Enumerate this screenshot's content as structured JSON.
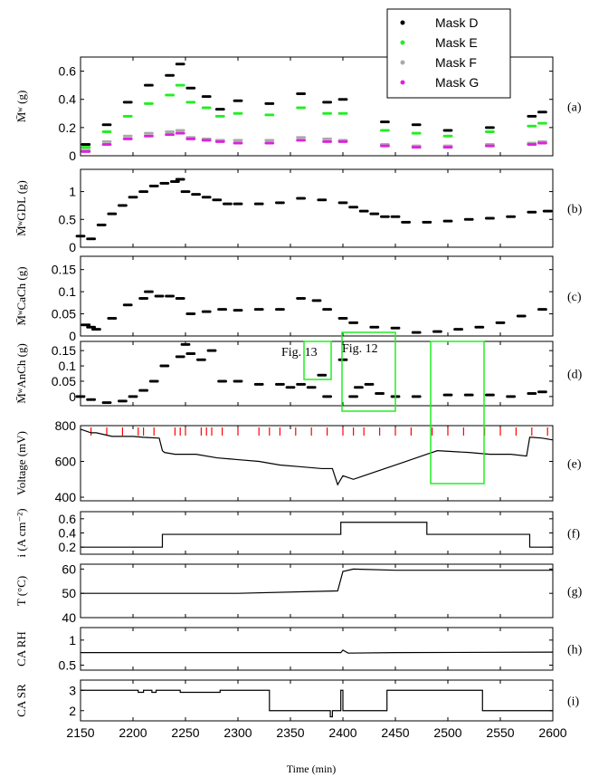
{
  "figure": {
    "xlabel": "Time (min)",
    "xticks": [
      "2150",
      "2200",
      "2250",
      "2300",
      "2350",
      "2400",
      "2450",
      "2500",
      "2550",
      "2600"
    ],
    "xlim": [
      2150,
      2600
    ]
  },
  "legend": {
    "placement": "top-right",
    "entries": [
      {
        "label": "Mask D",
        "color": "#000000"
      },
      {
        "label": "Mask E",
        "color": "#22ee22"
      },
      {
        "label": "Mask F",
        "color": "#aaaaaa"
      },
      {
        "label": "Mask G",
        "color": "#dd22dd"
      }
    ]
  },
  "annotations": {
    "fig13": "Fig. 13",
    "fig12": "Fig. 12",
    "box_color": "#22ee22",
    "marker_color": "#ff0000"
  },
  "chart_data": [
    {
      "id": "a",
      "type": "scatter",
      "panel_label": "(a)",
      "ylabel": "M̄ʷ (g)",
      "ylim": [
        0,
        0.7
      ],
      "yticks": [
        "0",
        "0.2",
        "0.4",
        "0.6"
      ],
      "series": [
        {
          "name": "Mask D",
          "color": "#000000",
          "x": [
            2155,
            2175,
            2195,
            2215,
            2235,
            2245,
            2255,
            2270,
            2283,
            2300,
            2330,
            2360,
            2385,
            2400,
            2440,
            2470,
            2500,
            2540,
            2580,
            2590
          ],
          "y": [
            0.08,
            0.22,
            0.38,
            0.5,
            0.57,
            0.65,
            0.48,
            0.42,
            0.33,
            0.39,
            0.37,
            0.44,
            0.38,
            0.4,
            0.24,
            0.22,
            0.18,
            0.2,
            0.28,
            0.31
          ]
        },
        {
          "name": "Mask E",
          "color": "#22ee22",
          "x": [
            2155,
            2175,
            2195,
            2215,
            2235,
            2245,
            2255,
            2270,
            2283,
            2300,
            2330,
            2360,
            2385,
            2400,
            2440,
            2470,
            2500,
            2540,
            2580,
            2590
          ],
          "y": [
            0.06,
            0.17,
            0.28,
            0.37,
            0.43,
            0.5,
            0.38,
            0.34,
            0.28,
            0.3,
            0.29,
            0.34,
            0.3,
            0.3,
            0.18,
            0.16,
            0.14,
            0.17,
            0.21,
            0.23
          ]
        },
        {
          "name": "Mask F",
          "color": "#aaaaaa",
          "x": [
            2155,
            2175,
            2195,
            2215,
            2235,
            2245,
            2255,
            2270,
            2283,
            2300,
            2330,
            2360,
            2385,
            2400,
            2440,
            2470,
            2500,
            2540,
            2580,
            2590
          ],
          "y": [
            0.04,
            0.1,
            0.14,
            0.16,
            0.17,
            0.18,
            0.13,
            0.12,
            0.11,
            0.11,
            0.11,
            0.13,
            0.12,
            0.11,
            0.08,
            0.07,
            0.07,
            0.08,
            0.09,
            0.1
          ]
        },
        {
          "name": "Mask G",
          "color": "#dd22dd",
          "x": [
            2155,
            2175,
            2195,
            2215,
            2235,
            2245,
            2255,
            2270,
            2283,
            2300,
            2330,
            2360,
            2385,
            2400,
            2440,
            2470,
            2500,
            2540,
            2580,
            2590
          ],
          "y": [
            0.03,
            0.08,
            0.12,
            0.14,
            0.15,
            0.16,
            0.12,
            0.11,
            0.1,
            0.09,
            0.09,
            0.11,
            0.1,
            0.1,
            0.07,
            0.06,
            0.06,
            0.07,
            0.08,
            0.09
          ]
        }
      ]
    },
    {
      "id": "b",
      "type": "scatter",
      "panel_label": "(b)",
      "ylabel": "M̄ʷGDL (g)",
      "ylim": [
        0,
        1.4
      ],
      "yticks": [
        "0",
        "0.5",
        "1"
      ],
      "series": [
        {
          "color": "#000000",
          "x": [
            2150,
            2160,
            2170,
            2180,
            2190,
            2200,
            2210,
            2220,
            2230,
            2240,
            2245,
            2250,
            2260,
            2270,
            2280,
            2290,
            2300,
            2320,
            2340,
            2360,
            2380,
            2400,
            2410,
            2420,
            2430,
            2440,
            2450,
            2460,
            2480,
            2500,
            2520,
            2540,
            2560,
            2580,
            2595
          ],
          "y": [
            0.2,
            0.15,
            0.4,
            0.6,
            0.75,
            0.9,
            1.0,
            1.1,
            1.15,
            1.18,
            1.22,
            1.0,
            0.95,
            0.9,
            0.85,
            0.78,
            0.78,
            0.78,
            0.8,
            0.88,
            0.85,
            0.8,
            0.72,
            0.65,
            0.6,
            0.55,
            0.55,
            0.45,
            0.45,
            0.47,
            0.5,
            0.52,
            0.55,
            0.63,
            0.65
          ]
        }
      ]
    },
    {
      "id": "c",
      "type": "scatter",
      "panel_label": "(c)",
      "ylabel": "M̄ʷCaCh (g)",
      "ylim": [
        0,
        0.18
      ],
      "yticks": [
        "0",
        "0.05",
        "0.1",
        "0.15"
      ],
      "series": [
        {
          "color": "#000000",
          "x": [
            2155,
            2160,
            2165,
            2180,
            2195,
            2210,
            2215,
            2225,
            2235,
            2245,
            2255,
            2270,
            2285,
            2300,
            2320,
            2340,
            2360,
            2375,
            2385,
            2400,
            2410,
            2430,
            2450,
            2470,
            2490,
            2510,
            2530,
            2550,
            2570,
            2590
          ],
          "y": [
            0.025,
            0.02,
            0.015,
            0.04,
            0.07,
            0.085,
            0.1,
            0.09,
            0.09,
            0.085,
            0.05,
            0.055,
            0.06,
            0.058,
            0.06,
            0.06,
            0.085,
            0.08,
            0.06,
            0.04,
            0.03,
            0.02,
            0.018,
            0.008,
            0.01,
            0.015,
            0.02,
            0.03,
            0.045,
            0.06
          ]
        }
      ]
    },
    {
      "id": "d",
      "type": "scatter",
      "panel_label": "(d)",
      "ylabel": "M̄ʷAnCh (g)",
      "ylim": [
        -0.03,
        0.18
      ],
      "yticks": [
        "0",
        "0.05",
        "0.1",
        "0.15"
      ],
      "series": [
        {
          "color": "#000000",
          "x": [
            2150,
            2160,
            2175,
            2190,
            2200,
            2210,
            2220,
            2230,
            2245,
            2250,
            2255,
            2265,
            2275,
            2285,
            2300,
            2320,
            2340,
            2350,
            2360,
            2370,
            2380,
            2385,
            2400,
            2410,
            2415,
            2425,
            2435,
            2450,
            2470,
            2500,
            2520,
            2540,
            2560,
            2580,
            2590
          ],
          "y": [
            0.0,
            -0.01,
            -0.02,
            -0.015,
            0.0,
            0.02,
            0.05,
            0.1,
            0.13,
            0.17,
            0.14,
            0.12,
            0.15,
            0.05,
            0.05,
            0.04,
            0.04,
            0.03,
            0.04,
            0.03,
            0.07,
            0.0,
            0.12,
            0.0,
            0.03,
            0.04,
            0.01,
            0.0,
            0.0,
            0.005,
            0.005,
            0.005,
            0.0,
            0.01,
            0.015
          ]
        }
      ]
    },
    {
      "id": "e",
      "type": "line",
      "panel_label": "(e)",
      "ylabel": "Voltage (mV)",
      "ylim": [
        380,
        800
      ],
      "yticks": [
        "400",
        "600",
        "800"
      ],
      "markers_x": [
        2160,
        2175,
        2190,
        2205,
        2210,
        2220,
        2240,
        2245,
        2250,
        2265,
        2270,
        2275,
        2285,
        2300,
        2320,
        2330,
        2340,
        2355,
        2370,
        2385,
        2400,
        2410,
        2420,
        2435,
        2450,
        2465,
        2485,
        2500,
        2515,
        2535,
        2550,
        2565,
        2580,
        2595
      ],
      "series": [
        {
          "color": "#000000",
          "x": [
            2150,
            2160,
            2165,
            2180,
            2200,
            2210,
            2225,
            2228,
            2230,
            2240,
            2260,
            2280,
            2300,
            2320,
            2340,
            2360,
            2380,
            2390,
            2395,
            2400,
            2410,
            2420,
            2440,
            2460,
            2480,
            2490,
            2520,
            2540,
            2560,
            2575,
            2578,
            2580,
            2590,
            2600
          ],
          "y": [
            780,
            760,
            760,
            740,
            740,
            735,
            730,
            660,
            650,
            640,
            640,
            620,
            610,
            600,
            580,
            570,
            560,
            560,
            470,
            520,
            500,
            520,
            560,
            600,
            640,
            660,
            650,
            640,
            640,
            630,
            735,
            735,
            730,
            720
          ]
        }
      ]
    },
    {
      "id": "f",
      "type": "line",
      "panel_label": "(f)",
      "ylabel": "i (A cm⁻²)",
      "ylim": [
        0.1,
        0.7
      ],
      "yticks": [
        "0.2",
        "0.4",
        "0.6"
      ],
      "series": [
        {
          "color": "#000000",
          "x": [
            2150,
            2228,
            2228,
            2398,
            2398,
            2480,
            2480,
            2578,
            2578,
            2600
          ],
          "y": [
            0.2,
            0.2,
            0.38,
            0.38,
            0.55,
            0.55,
            0.38,
            0.38,
            0.2,
            0.2
          ]
        }
      ]
    },
    {
      "id": "g",
      "type": "line",
      "panel_label": "(g)",
      "ylabel": "T (°C)",
      "ylim": [
        40,
        62
      ],
      "yticks": [
        "40",
        "50",
        "60"
      ],
      "series": [
        {
          "color": "#000000",
          "x": [
            2150,
            2300,
            2395,
            2400,
            2410,
            2450,
            2600
          ],
          "y": [
            50,
            50,
            51,
            59,
            60,
            59.5,
            59.5
          ]
        }
      ]
    },
    {
      "id": "h",
      "type": "line",
      "panel_label": "(h)",
      "ylabel": "CA RH",
      "ylim": [
        0.4,
        1.25
      ],
      "yticks": [
        "0.5",
        "1"
      ],
      "series": [
        {
          "color": "#000000",
          "x": [
            2150,
            2398,
            2400,
            2405,
            2450,
            2600
          ],
          "y": [
            0.75,
            0.75,
            0.8,
            0.74,
            0.75,
            0.76
          ]
        }
      ]
    },
    {
      "id": "i",
      "type": "line",
      "panel_label": "(i)",
      "ylabel": "CA SR",
      "ylim": [
        1.5,
        3.5
      ],
      "yticks": [
        "2",
        "3"
      ],
      "series": [
        {
          "color": "#000000",
          "x": [
            2150,
            2205,
            2205,
            2210,
            2210,
            2218,
            2218,
            2222,
            2222,
            2245,
            2245,
            2283,
            2283,
            2285,
            2285,
            2330,
            2330,
            2388,
            2388,
            2390,
            2390,
            2398,
            2398,
            2400,
            2400,
            2442,
            2442,
            2533,
            2533,
            2578,
            2578,
            2600
          ],
          "y": [
            3,
            3,
            2.9,
            2.9,
            3,
            3,
            2.9,
            2.9,
            3,
            3,
            2.9,
            2.9,
            3,
            3,
            3,
            3,
            2,
            2,
            1.7,
            1.7,
            2,
            2,
            3,
            3,
            2,
            2,
            3,
            3,
            2,
            2,
            2,
            2
          ]
        }
      ]
    }
  ]
}
